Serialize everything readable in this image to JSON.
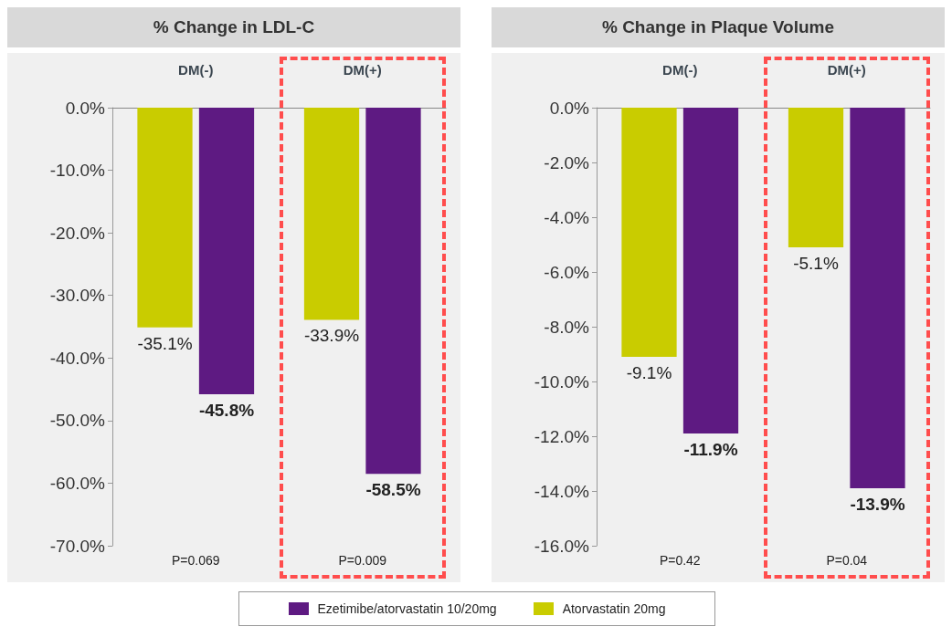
{
  "chart_data": [
    {
      "type": "bar",
      "title": "% Change in LDL-C",
      "categories": [
        "DM(-)",
        "DM(+)"
      ],
      "series": [
        {
          "name": "Atorvastatin 20mg",
          "color": "#c9cc00",
          "values": [
            -35.1,
            -33.9
          ],
          "value_labels": [
            "-35.1%",
            "-33.9%"
          ]
        },
        {
          "name": "Ezetimibe/atorvastatin 10/20mg",
          "color": "#5e1a82",
          "values": [
            -45.8,
            -58.5
          ],
          "value_labels": [
            "-45.8%",
            "-58.5%"
          ]
        }
      ],
      "ylim": [
        -70,
        0
      ],
      "yticks": [
        {
          "value": 0,
          "label": "0.0%"
        },
        {
          "value": -10,
          "label": "-10.0%"
        },
        {
          "value": -20,
          "label": "-20.0%"
        },
        {
          "value": -30,
          "label": "-30.0%"
        },
        {
          "value": -40,
          "label": "-40.0%"
        },
        {
          "value": -50,
          "label": "-50.0%"
        },
        {
          "value": -60,
          "label": "-60.0%"
        },
        {
          "value": -70,
          "label": "-70.0%"
        }
      ],
      "annotations": [
        "P=0.069",
        "P=0.009"
      ],
      "legend": "bottom",
      "grid": false
    },
    {
      "type": "bar",
      "title": "% Change in Plaque Volume",
      "categories": [
        "DM(-)",
        "DM(+)"
      ],
      "series": [
        {
          "color": "#c9cc00",
          "values": [
            -9.1,
            -5.1
          ],
          "value_labels": [
            "-9.1%",
            "-5.1%"
          ]
        },
        {
          "color": "#5e1a82",
          "values": [
            -11.9,
            -13.9
          ],
          "value_labels": [
            "-11.9%",
            "-13.9%"
          ]
        }
      ],
      "ylim": [
        -16,
        0
      ],
      "yticks": [
        {
          "value": 0,
          "label": "0.0%"
        },
        {
          "value": -2,
          "label": "-2.0%"
        },
        {
          "value": -4,
          "label": "-4.0%"
        },
        {
          "value": -6,
          "label": "-6.0%"
        },
        {
          "value": -8,
          "label": "-8.0%"
        },
        {
          "value": -10,
          "label": "-10.0%"
        },
        {
          "value": -12,
          "label": "-12.0%"
        },
        {
          "value": -14,
          "label": "-14.0%"
        },
        {
          "value": -16,
          "label": "-16.0%"
        }
      ],
      "annotations": [
        "P=0.42",
        "P=0.04"
      ],
      "grid": false
    }
  ]
}
